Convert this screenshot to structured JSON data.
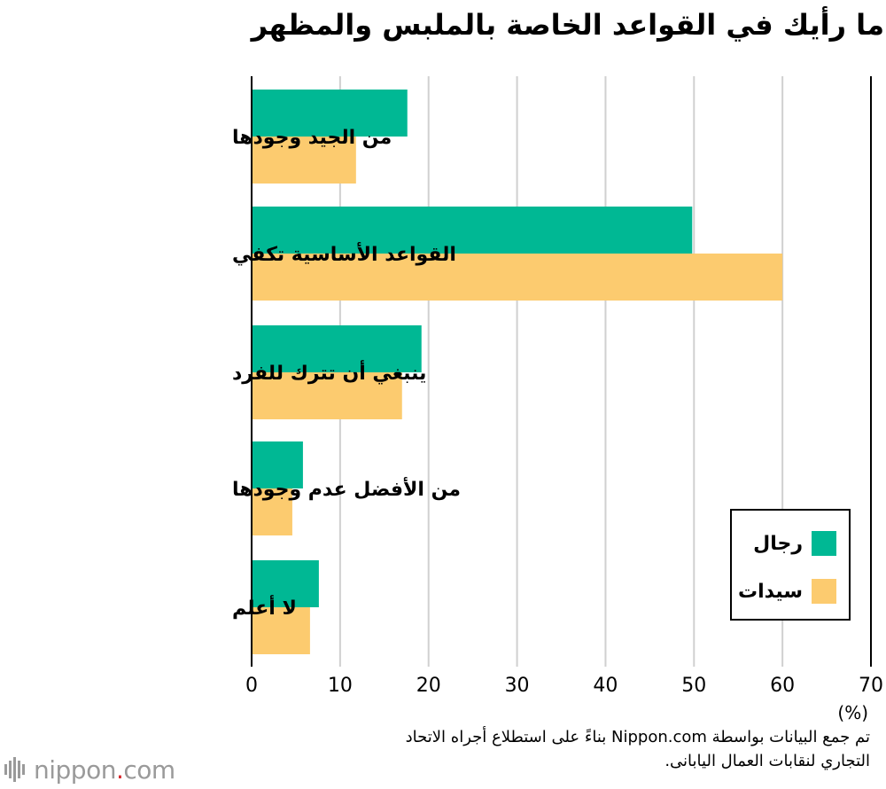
{
  "title": "ما رأيك في القواعد الخاصة بالملبس والمظهر",
  "chart_data": {
    "type": "bar",
    "orientation": "horizontal",
    "categories": [
      "من الجيد وجودها",
      "القواعد الأساسية تكفي",
      "ينبغي أن تترك للفرد",
      "من الأفضل عدم وجودها",
      "لا أعلم"
    ],
    "series": [
      {
        "name": "رجال",
        "color": "#00b894",
        "values": [
          17.6,
          49.8,
          19.2,
          5.8,
          7.6
        ]
      },
      {
        "name": "سيدات",
        "color": "#fccb6f",
        "values": [
          11.8,
          60.0,
          17.0,
          4.6,
          6.6
        ]
      }
    ],
    "xlim": [
      0,
      70
    ],
    "xticks": [
      "0",
      "10",
      "20",
      "30",
      "40",
      "50",
      "60",
      "70"
    ],
    "xlabel": "(%)",
    "grid": true,
    "legend": "bottom-right"
  },
  "source_lines": [
    "تم جمع البيانات بواسطة Nippon.com بناءً على استطلاع أجراه الاتحاد",
    "التجاري لنقابات العمال اليابانى."
  ],
  "logo": {
    "name": "nippon",
    "dot": ".",
    "suffix": "com"
  }
}
